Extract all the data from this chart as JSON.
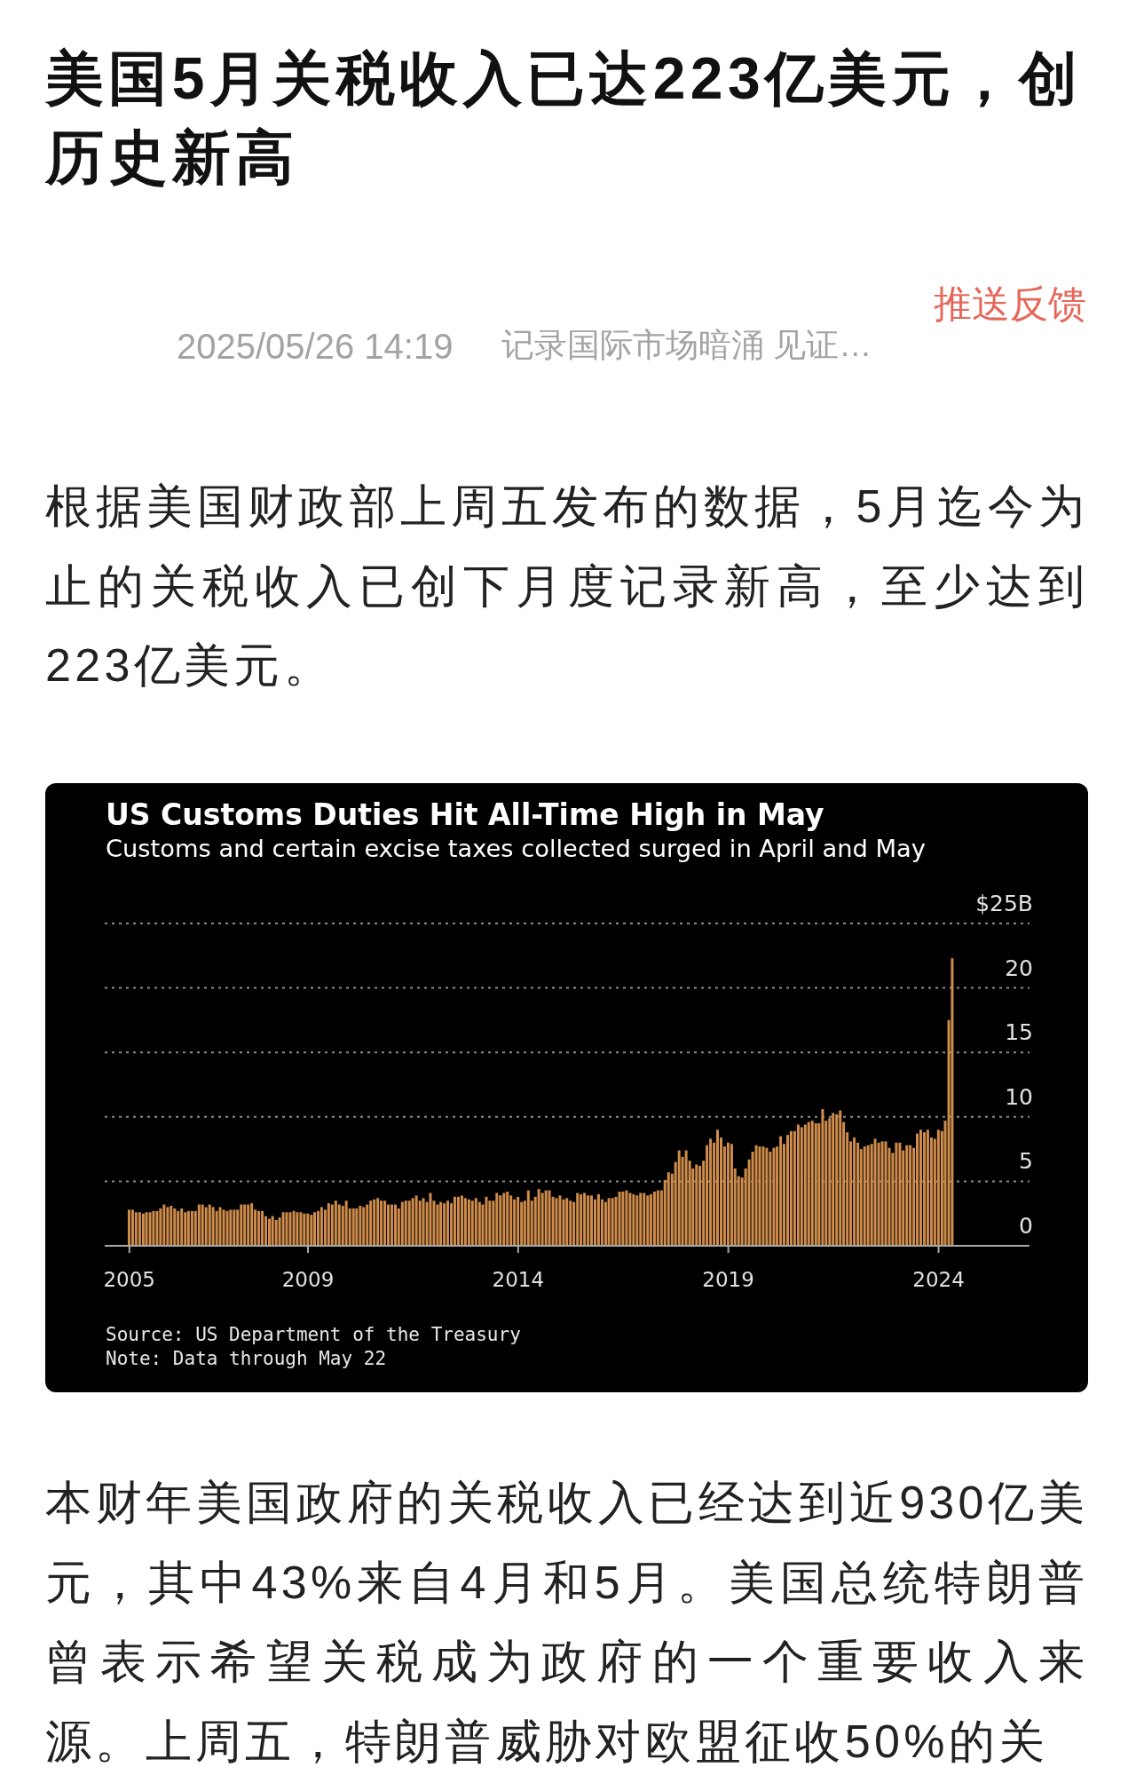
{
  "chart_data": [
    {
      "type": "other",
      "title": "美国5月关税收入已达223亿美元，创历史新高",
      "annotations": [
        "2025/05/26 14:19",
        "记录国际市场暗涌 见证…",
        "推送反馈",
        "根据美国财政部上周五发布的数据，5月迄今为止的关税收入已创下月度记录新高，至少达到223亿美元。"
      ]
    },
    {
      "type": "bar",
      "title": "US Customs Duties Hit All-Time High in May",
      "subtitle": "Customs and certain excise taxes collected surged in April and May",
      "x": [
        "2005-10",
        "2005-11",
        "2005-12",
        "2006-01",
        "2006-02",
        "2006-03",
        "2006-04",
        "2006-05",
        "2006-06",
        "2006-07",
        "2006-08",
        "2006-09",
        "2006-10",
        "2006-11",
        "2006-12",
        "2007-01",
        "2007-02",
        "2007-03",
        "2007-04",
        "2007-05",
        "2007-06",
        "2007-07",
        "2007-08",
        "2007-09",
        "2007-10",
        "2007-11",
        "2007-12",
        "2008-01",
        "2008-02",
        "2008-03",
        "2008-04",
        "2008-05",
        "2008-06",
        "2008-07",
        "2008-08",
        "2008-09",
        "2008-10",
        "2008-11",
        "2008-12",
        "2009-01",
        "2009-02",
        "2009-03",
        "2009-04",
        "2009-05",
        "2009-06",
        "2009-07",
        "2009-08",
        "2009-09",
        "2009-10",
        "2009-11",
        "2009-12",
        "2010-01",
        "2010-02",
        "2010-03",
        "2010-04",
        "2010-05",
        "2010-06",
        "2010-07",
        "2010-08",
        "2010-09",
        "2010-10",
        "2010-11",
        "2010-12",
        "2011-01",
        "2011-02",
        "2011-03",
        "2011-04",
        "2011-05",
        "2011-06",
        "2011-07",
        "2011-08",
        "2011-09",
        "2011-10",
        "2011-11",
        "2011-12",
        "2012-01",
        "2012-02",
        "2012-03",
        "2012-04",
        "2012-05",
        "2012-06",
        "2012-07",
        "2012-08",
        "2012-09",
        "2012-10",
        "2012-11",
        "2012-12",
        "2013-01",
        "2013-02",
        "2013-03",
        "2013-04",
        "2013-05",
        "2013-06",
        "2013-07",
        "2013-08",
        "2013-09",
        "2013-10",
        "2013-11",
        "2013-12",
        "2014-01",
        "2014-02",
        "2014-03",
        "2014-04",
        "2014-05",
        "2014-06",
        "2014-07",
        "2014-08",
        "2014-09",
        "2014-10",
        "2014-11",
        "2014-12",
        "2015-01",
        "2015-02",
        "2015-03",
        "2015-04",
        "2015-05",
        "2015-06",
        "2015-07",
        "2015-08",
        "2015-09",
        "2015-10",
        "2015-11",
        "2015-12",
        "2016-01",
        "2016-02",
        "2016-03",
        "2016-04",
        "2016-05",
        "2016-06",
        "2016-07",
        "2016-08",
        "2016-09",
        "2016-10",
        "2016-11",
        "2016-12",
        "2017-01",
        "2017-02",
        "2017-03",
        "2017-04",
        "2017-05",
        "2017-06",
        "2017-07",
        "2017-08",
        "2017-09",
        "2017-10",
        "2017-11",
        "2017-12",
        "2018-01",
        "2018-02",
        "2018-03",
        "2018-04",
        "2018-05",
        "2018-06",
        "2018-07",
        "2018-08",
        "2018-09",
        "2018-10",
        "2018-11",
        "2018-12",
        "2019-01",
        "2019-02",
        "2019-03",
        "2019-04",
        "2019-05",
        "2019-06",
        "2019-07",
        "2019-08",
        "2019-09",
        "2019-10",
        "2019-11",
        "2019-12",
        "2020-01",
        "2020-02",
        "2020-03",
        "2020-04",
        "2020-05",
        "2020-06",
        "2020-07",
        "2020-08",
        "2020-09",
        "2020-10",
        "2020-11",
        "2020-12",
        "2021-01",
        "2021-02",
        "2021-03",
        "2021-04",
        "2021-05",
        "2021-06",
        "2021-07",
        "2021-08",
        "2021-09",
        "2021-10",
        "2021-11",
        "2021-12",
        "2022-01",
        "2022-02",
        "2022-03",
        "2022-04",
        "2022-05",
        "2022-06",
        "2022-07",
        "2022-08",
        "2022-09",
        "2022-10",
        "2022-11",
        "2022-12",
        "2023-01",
        "2023-02",
        "2023-03",
        "2023-04",
        "2023-05",
        "2023-06",
        "2023-07",
        "2023-08",
        "2023-09",
        "2023-10",
        "2023-11",
        "2023-12",
        "2024-01",
        "2024-02",
        "2024-03",
        "2024-04",
        "2024-05",
        "2024-06",
        "2024-07",
        "2024-08",
        "2024-09",
        "2024-10",
        "2024-11",
        "2024-12",
        "2025-01",
        "2025-02",
        "2025-03",
        "2025-04",
        "2025-05"
      ],
      "values": [
        2.8,
        2.8,
        2.6,
        2.6,
        2.5,
        2.6,
        2.6,
        2.7,
        2.7,
        2.9,
        3.2,
        3.0,
        3.1,
        2.9,
        2.7,
        2.9,
        2.6,
        2.7,
        2.7,
        2.7,
        3.2,
        3.2,
        3.0,
        3.2,
        3.0,
        2.7,
        3.0,
        2.8,
        2.7,
        2.8,
        2.8,
        2.8,
        3.2,
        3.2,
        3.2,
        3.3,
        2.8,
        2.7,
        2.7,
        2.3,
        2.1,
        2.3,
        2.0,
        2.2,
        2.6,
        2.6,
        2.6,
        2.7,
        2.6,
        2.6,
        2.5,
        2.5,
        2.4,
        2.6,
        2.7,
        3.0,
        2.8,
        3.3,
        3.2,
        3.5,
        3.2,
        3.1,
        3.5,
        2.9,
        2.9,
        2.9,
        3.1,
        3.0,
        3.2,
        3.5,
        3.6,
        3.7,
        3.5,
        3.5,
        3.2,
        3.2,
        3.2,
        2.9,
        3.4,
        3.5,
        3.5,
        3.7,
        3.9,
        3.5,
        3.7,
        3.4,
        4.1,
        3.5,
        3.2,
        3.4,
        3.3,
        3.5,
        3.3,
        3.8,
        3.8,
        3.9,
        3.7,
        3.6,
        3.5,
        3.7,
        3.4,
        3.2,
        3.8,
        3.5,
        3.5,
        4.1,
        3.9,
        4.1,
        4.2,
        3.9,
        3.6,
        3.8,
        3.4,
        3.5,
        4.3,
        3.5,
        3.8,
        4.4,
        4.1,
        4.3,
        4.3,
        3.8,
        3.7,
        3.9,
        3.6,
        3.7,
        3.5,
        3.4,
        4.1,
        4.0,
        4.1,
        3.9,
        3.9,
        3.6,
        4.0,
        3.6,
        3.4,
        3.7,
        3.7,
        3.8,
        4.2,
        4.2,
        4.3,
        4.1,
        4.0,
        3.9,
        4.1,
        4.1,
        3.9,
        4.0,
        4.2,
        4.3,
        4.3,
        5.1,
        5.7,
        5.6,
        6.5,
        7.4,
        6.9,
        7.4,
        6.6,
        6.0,
        6.3,
        6.2,
        6.6,
        7.8,
        8.3,
        8.0,
        9.0,
        8.4,
        7.7,
        8.0,
        7.9,
        6.0,
        5.4,
        5.3,
        6.0,
        6.7,
        7.3,
        7.8,
        7.7,
        7.7,
        7.6,
        7.3,
        7.6,
        7.7,
        8.5,
        7.9,
        8.6,
        8.9,
        8.9,
        9.4,
        9.2,
        9.4,
        9.6,
        9.7,
        9.5,
        9.5,
        10.6,
        9.7,
        9.9,
        10.3,
        10.2,
        10.5,
        9.6,
        8.8,
        8.1,
        8.4,
        8.0,
        7.5,
        7.7,
        7.8,
        7.9,
        8.3,
        8.0,
        8.1,
        8.1,
        7.6,
        7.2,
        8.0,
        8.0,
        7.4,
        7.8,
        7.8,
        7.6,
        8.7,
        9.0,
        8.8,
        9.0,
        8.4,
        8.3,
        9.0,
        8.9,
        9.7,
        17.5,
        22.3
      ],
      "color": "#cf8c4b",
      "xlim": [
        "2005-03",
        "2027-03"
      ],
      "xticks": [
        {
          "value": "2005-10",
          "label": "2005"
        },
        {
          "value": "2009-12-31",
          "label": "2009"
        },
        {
          "value": "2014-12-31",
          "label": "2014"
        },
        {
          "value": "2019-12-31",
          "label": "2019"
        },
        {
          "value": "2024-12-31",
          "label": "2024"
        }
      ],
      "ylim": [
        0,
        25
      ],
      "yticks": [
        0,
        5,
        10,
        15,
        20,
        {
          "value": 25,
          "label": "$25B"
        }
      ],
      "grid": "y",
      "annotations": [
        "Source: US Department of the Treasury",
        "Note: Data through May 22"
      ]
    },
    {
      "type": "other",
      "annotations": [
        "本财年美国政府的关税收入已经达到近930亿美元，其中43%来自4月和5月。美国总统特朗普曾表示希望关税成为政府的一个重要收入来源。上周五，特朗普威胁对欧盟征收50%的关"
      ]
    }
  ]
}
